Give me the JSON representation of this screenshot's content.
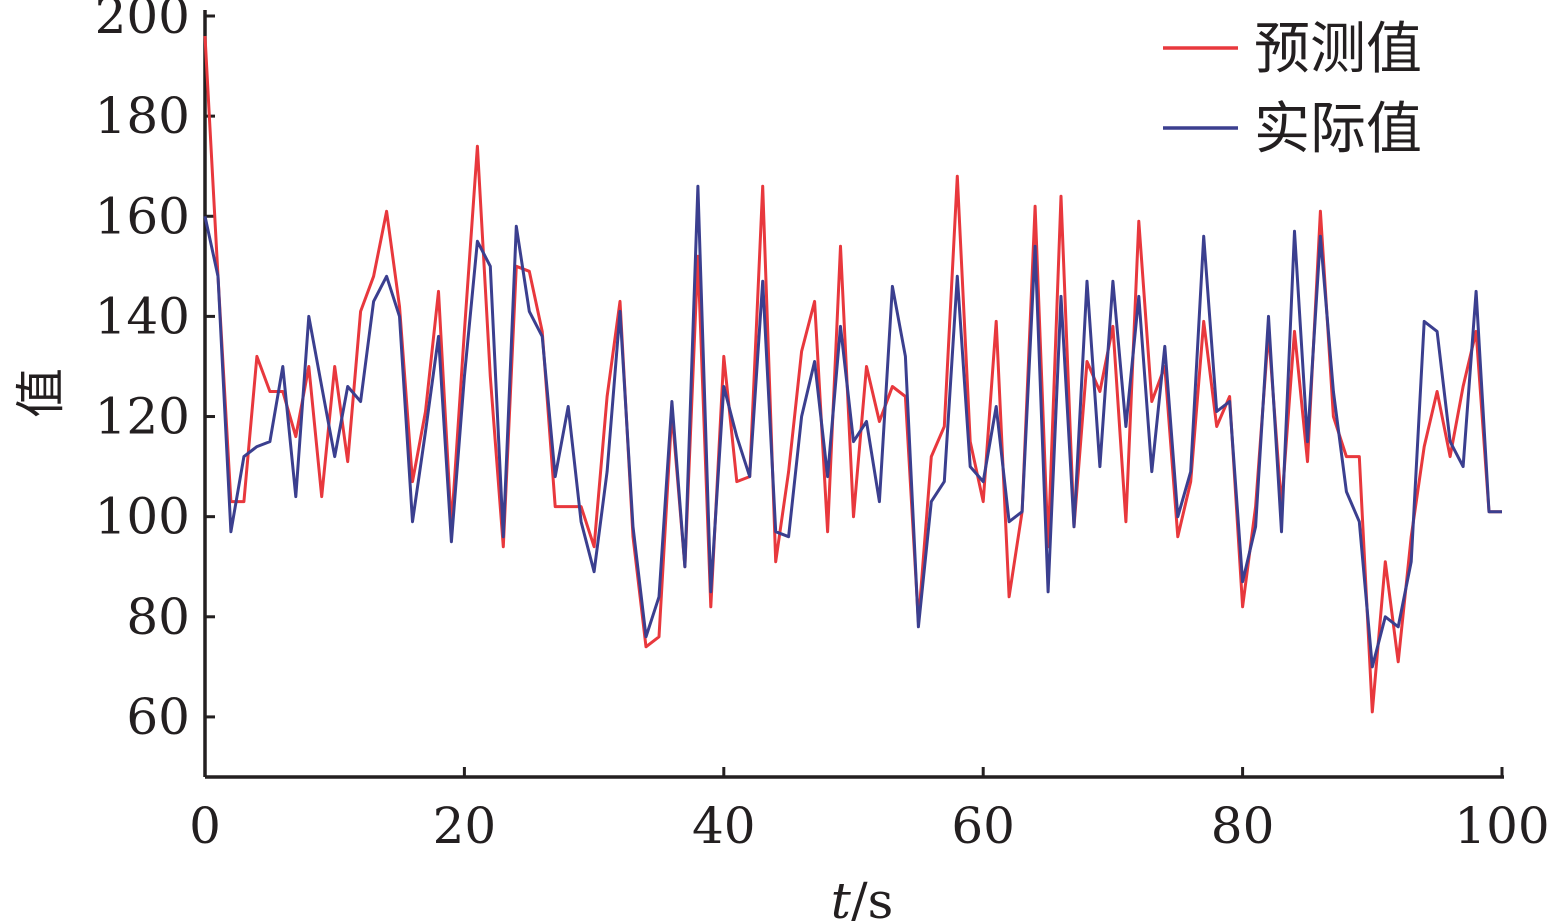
{
  "chart_data": {
    "type": "line",
    "xlabel": "t/s",
    "ylabel": "值",
    "xlim": [
      0,
      100
    ],
    "ylim": [
      48,
      200
    ],
    "xticks": [
      0,
      20,
      40,
      60,
      80,
      100
    ],
    "yticks": [
      60,
      80,
      100,
      120,
      140,
      160,
      180,
      200
    ],
    "grid": false,
    "legend_position": "top-right",
    "series": [
      {
        "name": "预测值",
        "color": "#e8383d",
        "x": [
          0,
          1,
          2,
          3,
          4,
          5,
          6,
          7,
          8,
          9,
          10,
          11,
          12,
          13,
          14,
          15,
          16,
          17,
          18,
          19,
          20,
          21,
          22,
          23,
          24,
          25,
          26,
          27,
          28,
          29,
          30,
          31,
          32,
          33,
          34,
          35,
          36,
          37,
          38,
          39,
          40,
          41,
          42,
          43,
          44,
          45,
          46,
          47,
          48,
          49,
          50,
          51,
          52,
          53,
          54,
          55,
          56,
          57,
          58,
          59,
          60,
          61,
          62,
          63,
          64,
          65,
          66,
          67,
          68,
          69,
          70,
          71,
          72,
          73,
          74,
          75,
          76,
          77,
          78,
          79,
          80,
          81,
          82,
          83,
          84,
          85,
          86,
          87,
          88,
          89,
          90,
          91,
          92,
          93,
          94,
          95,
          96,
          97,
          98,
          99,
          100
        ],
        "values": [
          196,
          148,
          103,
          103,
          132,
          125,
          125,
          116,
          130,
          104,
          130,
          111,
          141,
          148,
          161,
          142,
          107,
          121,
          145,
          98,
          137,
          174,
          128,
          94,
          150,
          149,
          137,
          102,
          102,
          102,
          94,
          124,
          143,
          96,
          74,
          76,
          121,
          90,
          152,
          82,
          132,
          107,
          108,
          166,
          91,
          109,
          133,
          143,
          97,
          154,
          100,
          130,
          119,
          126,
          124,
          79,
          112,
          118,
          168,
          115,
          103,
          139,
          84,
          101,
          162,
          94,
          164,
          98,
          131,
          125,
          138,
          99,
          159,
          123,
          130,
          96,
          107,
          139,
          118,
          124,
          82,
          102,
          137,
          102,
          137,
          111,
          161,
          120,
          112,
          112,
          61,
          91,
          71,
          96,
          114,
          125,
          112,
          126,
          137,
          101,
          101
        ]
      },
      {
        "name": "实际值",
        "color": "#3b3f8f",
        "x": [
          0,
          1,
          2,
          3,
          4,
          5,
          6,
          7,
          8,
          9,
          10,
          11,
          12,
          13,
          14,
          15,
          16,
          17,
          18,
          19,
          20,
          21,
          22,
          23,
          24,
          25,
          26,
          27,
          28,
          29,
          30,
          31,
          32,
          33,
          34,
          35,
          36,
          37,
          38,
          39,
          40,
          41,
          42,
          43,
          44,
          45,
          46,
          47,
          48,
          49,
          50,
          51,
          52,
          53,
          54,
          55,
          56,
          57,
          58,
          59,
          60,
          61,
          62,
          63,
          64,
          65,
          66,
          67,
          68,
          69,
          70,
          71,
          72,
          73,
          74,
          75,
          76,
          77,
          78,
          79,
          80,
          81,
          82,
          83,
          84,
          85,
          86,
          87,
          88,
          89,
          90,
          91,
          92,
          93,
          94,
          95,
          96,
          97,
          98,
          99,
          100
        ],
        "values": [
          160,
          148,
          97,
          112,
          114,
          115,
          130,
          104,
          140,
          126,
          112,
          126,
          123,
          143,
          148,
          140,
          99,
          117,
          136,
          95,
          128,
          155,
          150,
          96,
          158,
          141,
          136,
          108,
          122,
          99,
          89,
          109,
          141,
          98,
          76,
          84,
          123,
          90,
          166,
          85,
          126,
          116,
          108,
          147,
          97,
          96,
          120,
          131,
          108,
          138,
          115,
          119,
          103,
          146,
          132,
          78,
          103,
          107,
          148,
          110,
          107,
          122,
          99,
          101,
          154,
          85,
          144,
          98,
          147,
          110,
          147,
          118,
          144,
          109,
          134,
          100,
          109,
          156,
          121,
          123,
          87,
          98,
          140,
          97,
          157,
          115,
          156,
          125,
          105,
          99,
          70,
          80,
          78,
          91,
          139,
          137,
          115,
          110,
          145,
          101,
          101
        ]
      }
    ]
  }
}
